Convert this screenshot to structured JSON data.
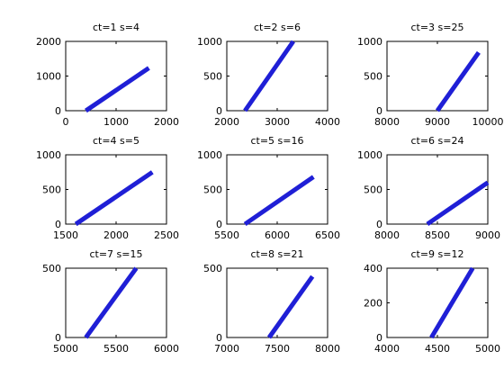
{
  "chart_data": [
    {
      "type": "line",
      "title": "ct=1 s=4",
      "xlim": [
        0,
        2000
      ],
      "ylim": [
        0,
        2000
      ],
      "xticks": [
        "0",
        "1000",
        "2000"
      ],
      "yticks": [
        "0",
        "1000",
        "2000"
      ],
      "series": [
        {
          "x": [
            400,
            1650
          ],
          "y": [
            0,
            1230
          ]
        }
      ]
    },
    {
      "type": "line",
      "title": "ct=2 s=6",
      "xlim": [
        2000,
        4000
      ],
      "ylim": [
        0,
        1000
      ],
      "xticks": [
        "2000",
        "3000",
        "4000"
      ],
      "yticks": [
        "0",
        "500",
        "1000"
      ],
      "series": [
        {
          "x": [
            2360,
            3320
          ],
          "y": [
            0,
            1000
          ]
        }
      ]
    },
    {
      "type": "line",
      "title": "ct=3 s=25",
      "xlim": [
        8000,
        10000
      ],
      "ylim": [
        0,
        1000
      ],
      "xticks": [
        "8000",
        "9000",
        "10000"
      ],
      "yticks": [
        "0",
        "500",
        "1000"
      ],
      "series": [
        {
          "x": [
            9000,
            9820
          ],
          "y": [
            0,
            840
          ]
        }
      ]
    },
    {
      "type": "line",
      "title": "ct=4 s=5",
      "xlim": [
        1500,
        2500
      ],
      "ylim": [
        0,
        1000
      ],
      "xticks": [
        "1500",
        "2000",
        "2500"
      ],
      "yticks": [
        "0",
        "500",
        "1000"
      ],
      "series": [
        {
          "x": [
            1600,
            2360
          ],
          "y": [
            0,
            750
          ]
        }
      ]
    },
    {
      "type": "line",
      "title": "ct=5 s=16",
      "xlim": [
        5500,
        6500
      ],
      "ylim": [
        0,
        1000
      ],
      "xticks": [
        "5500",
        "6000",
        "6500"
      ],
      "yticks": [
        "0",
        "500",
        "1000"
      ],
      "series": [
        {
          "x": [
            5680,
            6360
          ],
          "y": [
            0,
            680
          ]
        }
      ]
    },
    {
      "type": "line",
      "title": "ct=6 s=24",
      "xlim": [
        8000,
        9000
      ],
      "ylim": [
        0,
        1000
      ],
      "xticks": [
        "8000",
        "8500",
        "9000"
      ],
      "yticks": [
        "0",
        "500",
        "1000"
      ],
      "series": [
        {
          "x": [
            8400,
            9000
          ],
          "y": [
            0,
            600
          ]
        }
      ]
    },
    {
      "type": "line",
      "title": "ct=7 s=15",
      "xlim": [
        5000,
        6000
      ],
      "ylim": [
        0,
        500
      ],
      "xticks": [
        "5000",
        "5500",
        "6000"
      ],
      "yticks": [
        "0",
        "500"
      ],
      "series": [
        {
          "x": [
            5200,
            5700
          ],
          "y": [
            0,
            500
          ]
        }
      ]
    },
    {
      "type": "line",
      "title": "ct=8 s=21",
      "xlim": [
        7000,
        8000
      ],
      "ylim": [
        0,
        500
      ],
      "xticks": [
        "7000",
        "7500",
        "8000"
      ],
      "yticks": [
        "0",
        "500"
      ],
      "series": [
        {
          "x": [
            7420,
            7850
          ],
          "y": [
            0,
            440
          ]
        }
      ]
    },
    {
      "type": "line",
      "title": "ct=9 s=12",
      "xlim": [
        4000,
        5000
      ],
      "ylim": [
        0,
        400
      ],
      "xticks": [
        "4000",
        "4500",
        "5000"
      ],
      "yticks": [
        "0",
        "200",
        "400"
      ],
      "series": [
        {
          "x": [
            4440,
            4850
          ],
          "y": [
            0,
            400
          ]
        }
      ]
    }
  ],
  "colors": {
    "series": "#1f1fd6",
    "axis": "#000000",
    "background": "#ffffff"
  }
}
